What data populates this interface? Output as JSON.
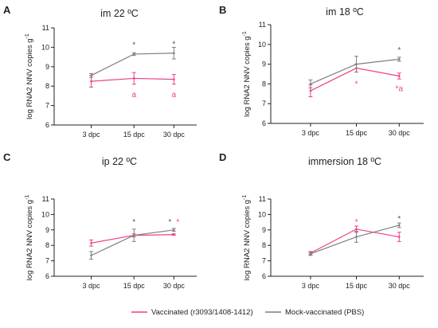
{
  "colors": {
    "vaccinated": "#ee3f8c",
    "mock": "#7f7f7f",
    "axis": "#222222"
  },
  "legend": [
    {
      "label": "Vaccinated (r3093/1408-1412)",
      "color": "#ee3f8c"
    },
    {
      "label": "Mock-vaccinated (PBS)",
      "color": "#7f7f7f"
    }
  ],
  "chart_data": [
    {
      "type": "line",
      "panel": "A",
      "title": "im 22 ºC",
      "ylabel": "log RNA2 NNV copies g",
      "ylabel_sup": "-1",
      "ylim": [
        6,
        11
      ],
      "yticks": [
        "6",
        "7",
        "8",
        "9",
        "10",
        "11"
      ],
      "categories": [
        "3 dpc",
        "15 dpc",
        "30 dpc"
      ],
      "series": [
        {
          "name": "Vaccinated (r3093/1408-1412)",
          "color": "#ee3f8c",
          "values": [
            8.25,
            8.4,
            8.35
          ],
          "errors": [
            0.3,
            0.3,
            0.25
          ]
        },
        {
          "name": "Mock-vaccinated (PBS)",
          "color": "#7f7f7f",
          "values": [
            8.55,
            9.65,
            9.7
          ],
          "errors": [
            0.1,
            0.07,
            0.3
          ]
        }
      ],
      "annotations": [
        {
          "text": "*",
          "category": 1,
          "y": 10.12,
          "color": "#555555"
        },
        {
          "text": "*",
          "category": 2,
          "y": 10.17,
          "color": "#555555"
        },
        {
          "text": "a",
          "category": 1,
          "y": 7.55,
          "color": "#ee3f8c"
        },
        {
          "text": "a",
          "category": 2,
          "y": 7.55,
          "color": "#ee3f8c"
        }
      ]
    },
    {
      "type": "line",
      "panel": "B",
      "title": "im 18 ºC",
      "ylabel": "log RNA2 NNV copies g",
      "ylabel_sup": "-1",
      "ylim": [
        6,
        11
      ],
      "yticks": [
        "6",
        "7",
        "8",
        "9",
        "10",
        "11"
      ],
      "categories": [
        "3 dpc",
        "15 dpc",
        "30 dpc"
      ],
      "series": [
        {
          "name": "Vaccinated (r3093/1408-1412)",
          "color": "#ee3f8c",
          "values": [
            7.65,
            8.8,
            8.4
          ],
          "errors": [
            0.3,
            0.2,
            0.15
          ]
        },
        {
          "name": "Mock-vaccinated (PBS)",
          "color": "#7f7f7f",
          "values": [
            8.0,
            9.0,
            9.25
          ],
          "errors": [
            0.2,
            0.4,
            0.1
          ]
        }
      ],
      "annotations": [
        {
          "text": "*",
          "category": 1,
          "y": 8.0,
          "color": "#ee3f8c"
        },
        {
          "text": "*",
          "category": 2,
          "y": 9.7,
          "color": "#555555"
        },
        {
          "text": "*a",
          "category": 2,
          "y": 7.75,
          "color": "#ee3f8c"
        }
      ]
    },
    {
      "type": "line",
      "panel": "C",
      "title": "ip 22 ºC",
      "ylabel": "log RNA2 NNV copies g",
      "ylabel_sup": "-1",
      "ylim": [
        6,
        11
      ],
      "yticks": [
        "6",
        "7",
        "8",
        "9",
        "10",
        "11"
      ],
      "categories": [
        "3 dpc",
        "15 dpc",
        "30 dpc"
      ],
      "series": [
        {
          "name": "Vaccinated (r3093/1408-1412)",
          "color": "#ee3f8c",
          "values": [
            8.15,
            8.65,
            8.7
          ],
          "errors": [
            0.2,
            0.1,
            0.05
          ]
        },
        {
          "name": "Mock-vaccinated (PBS)",
          "color": "#7f7f7f",
          "values": [
            7.35,
            8.65,
            9.0
          ],
          "errors": [
            0.25,
            0.4,
            0.1
          ]
        }
      ],
      "annotations": [
        {
          "text": "*",
          "category": 1,
          "y": 9.5,
          "color": "#555555"
        },
        {
          "text": "*",
          "category": 2,
          "y": 9.5,
          "color": "#555555",
          "dx": -5
        },
        {
          "text": "*",
          "category": 2,
          "y": 9.5,
          "color": "#ee3f8c",
          "dx": 5
        }
      ]
    },
    {
      "type": "line",
      "panel": "D",
      "title": "immersion 18 ºC",
      "ylabel": "log RNA2 NNV copies g",
      "ylabel_sup": "-1",
      "ylim": [
        6,
        11
      ],
      "yticks": [
        "6",
        "7",
        "8",
        "9",
        "10",
        "11"
      ],
      "categories": [
        "3 dpc",
        "15 dpc",
        "30 dpc"
      ],
      "series": [
        {
          "name": "Vaccinated (r3093/1408-1412)",
          "color": "#ee3f8c",
          "values": [
            7.5,
            9.05,
            8.55
          ],
          "errors": [
            0.1,
            0.2,
            0.3
          ]
        },
        {
          "name": "Mock-vaccinated (PBS)",
          "color": "#7f7f7f",
          "values": [
            7.45,
            8.55,
            9.3
          ],
          "errors": [
            0.1,
            0.35,
            0.15
          ]
        }
      ],
      "annotations": [
        {
          "text": "*",
          "category": 1,
          "y": 9.5,
          "color": "#ee3f8c"
        },
        {
          "text": "*",
          "category": 2,
          "y": 9.7,
          "color": "#555555"
        }
      ]
    }
  ]
}
